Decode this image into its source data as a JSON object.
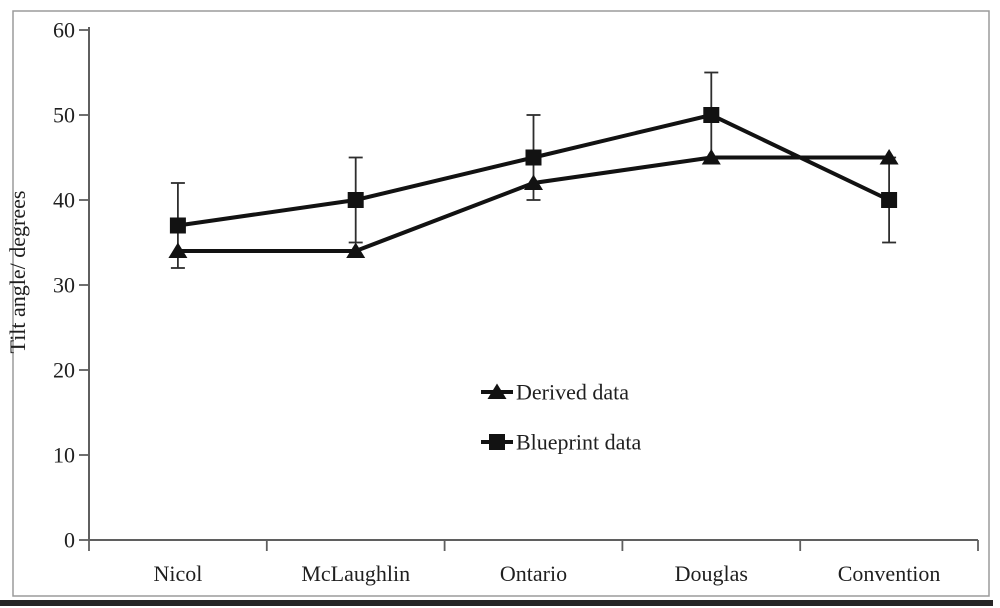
{
  "figure": {
    "background": "#ffffff",
    "border_color": "#9b9b9b",
    "bottom_rule_color": "#262626",
    "axis_color": "#5f5f5f",
    "text_color": "#1f1f1f"
  },
  "chart_data": {
    "type": "line",
    "title": "",
    "xlabel": "",
    "ylabel": "Tilt angle/ degrees",
    "categories": [
      "Nicol",
      "McLaughlin",
      "Ontario",
      "Douglas",
      "Convention"
    ],
    "series": [
      {
        "name": "Derived data",
        "marker": "triangle",
        "color": "#121212",
        "values": [
          34,
          34,
          42,
          45,
          45
        ],
        "error": [
          0,
          0,
          0,
          0,
          0
        ]
      },
      {
        "name": "Blueprint data",
        "marker": "square",
        "color": "#121212",
        "values": [
          37,
          40,
          45,
          50,
          40
        ],
        "error": [
          5,
          5,
          5,
          5,
          5
        ]
      }
    ],
    "ylim": [
      0,
      60
    ],
    "ytick_step": 10,
    "ytick_labels": [
      "0",
      "10",
      "20",
      "30",
      "40",
      "50",
      "60"
    ],
    "grid": false,
    "legend": {
      "position": "inside-center",
      "entries": [
        "Derived data",
        "Blueprint data"
      ]
    }
  }
}
